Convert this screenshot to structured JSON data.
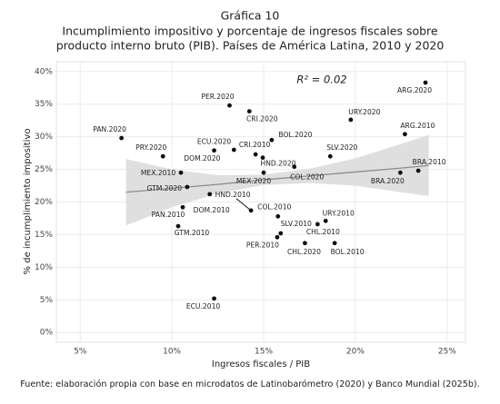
{
  "chart_data": {
    "type": "scatter",
    "title": "Gráfica 10",
    "subtitle": [
      "Incumplimiento impositivo y porcentaje de ingresos fiscales sobre",
      "producto interno bruto (PIB). Países de América Latina, 2010 y 2020"
    ],
    "x_label": "Ingresos fiscales / PIB",
    "y_label": "% de incumplimiento impositivo",
    "source": "Fuente: elaboración propia con base en microdatos de Latinobarómetro (2020) y Banco Mundial (2025b).",
    "annotation": "R² = 0.02",
    "labels": [
      "ARG.2020",
      "PER.2020",
      "CRI.2020",
      "URY.2020",
      "PAN.2020",
      "BOL.2020",
      "ARG.2010",
      "PRY.2020",
      "ECU.2020",
      "DOM.2020",
      "CRI.2010",
      "HND.2020",
      "SLV.2020",
      "MEX.2010",
      "MEX.2020",
      "COL.2020",
      "GTM.2020",
      "BRA.2020",
      "BRA.2010",
      "HND.2010",
      "PAN.2010",
      "GTM.2010",
      "DOM.2010",
      "COL.2010",
      "URY.2010",
      "CHL.2010",
      "SLV.2010",
      "PER.2010",
      "CHL.2020",
      "BOL.2010",
      "ECU.2010"
    ],
    "x": [
      23.82,
      13.14,
      14.22,
      19.75,
      7.25,
      15.44,
      22.7,
      9.51,
      12.3,
      13.38,
      14.56,
      14.95,
      18.63,
      10.49,
      15.0,
      16.67,
      10.83,
      22.45,
      23.43,
      14.31,
      10.59,
      10.34,
      12.06,
      15.78,
      18.38,
      17.94,
      15.93,
      15.74,
      17.25,
      18.87,
      12.3
    ],
    "y": [
      38.3,
      34.8,
      33.9,
      32.6,
      29.8,
      29.5,
      30.4,
      27.0,
      27.9,
      28.0,
      27.3,
      26.8,
      27.0,
      24.5,
      24.5,
      25.4,
      22.3,
      24.5,
      24.8,
      18.7,
      19.2,
      16.3,
      21.2,
      17.8,
      17.1,
      16.6,
      15.2,
      14.6,
      13.7,
      13.7,
      5.2
    ],
    "color": "#111111",
    "fit": {
      "x": [
        7.5,
        10,
        12.5,
        15,
        17.5,
        20,
        22.5,
        24
      ],
      "y": [
        21.5,
        22.1,
        22.7,
        23.4,
        24.0,
        24.6,
        25.2,
        25.6
      ],
      "lower": [
        16.4,
        19.2,
        21.3,
        22.6,
        22.9,
        22.5,
        21.5,
        20.9
      ],
      "upper": [
        26.6,
        25.0,
        24.1,
        24.2,
        25.1,
        26.7,
        28.9,
        30.3
      ],
      "color": "#8c8c8c",
      "band_color": "#d9d9d9"
    },
    "xlim": [
      3.7,
      26
    ],
    "ylim": [
      -1.5,
      41.5
    ],
    "xticks": [
      {
        "value": 5,
        "label": "5%"
      },
      {
        "value": 10,
        "label": "10%"
      },
      {
        "value": 15,
        "label": "15%"
      },
      {
        "value": 20,
        "label": "20%"
      },
      {
        "value": 25,
        "label": "25%"
      }
    ],
    "yticks": [
      {
        "value": 0,
        "label": "0%"
      },
      {
        "value": 5,
        "label": "5%"
      },
      {
        "value": 10,
        "label": "10%"
      },
      {
        "value": 15,
        "label": "15%"
      },
      {
        "value": 20,
        "label": "20%"
      },
      {
        "value": 25,
        "label": "25%"
      },
      {
        "value": 30,
        "label": "30%"
      },
      {
        "value": 35,
        "label": "35%"
      },
      {
        "value": 40,
        "label": "40%"
      }
    ],
    "grid": true
  }
}
